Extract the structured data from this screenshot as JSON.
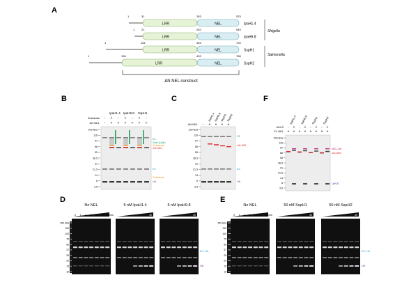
{
  "panels": {
    "A": {
      "letter": "A",
      "constructs": [
        {
          "name": "IpaH1.4",
          "start": "1",
          "lrr_start": "31",
          "nel_start": "283",
          "end": "575"
        },
        {
          "name": "IpaH9.8",
          "start": "1",
          "lrr_start": "21",
          "nel_start": "252",
          "end": "545"
        },
        {
          "name": "SspH1",
          "start": "1",
          "lrr_start": "161",
          "nel_start": "403",
          "end": "700"
        },
        {
          "name": "SspH2",
          "start": "1",
          "lrr_start": "156",
          "nel_start": "493",
          "end": "788"
        }
      ],
      "lrr_label": "LRR",
      "nel_label": "NEL",
      "shigella": "Shigella",
      "salmonella": "Salmonella",
      "bracket_label": "ΔN NEL construct"
    },
    "B": {
      "letter": "B",
      "col_groups": [
        "IpaH1.4",
        "IpaH9.8",
        "SspH1"
      ],
      "row1_label": "Substrate",
      "row2_label": "ΔN NEL",
      "row1_signs": [
        "-",
        "+",
        "-",
        "+",
        "-",
        "+",
        "-"
      ],
      "row2_signs": [
        "-",
        "+",
        "+",
        "+",
        "+",
        "+",
        "+"
      ],
      "markers": [
        "200 kDa",
        "116",
        "97",
        "66",
        "55",
        "36.5",
        "31",
        "21.5",
        "14",
        "6",
        "3.5"
      ],
      "labels": {
        "e1": "E1",
        "subub": "Sub-(Ub)n",
        "substrate": "Substrate",
        "dnnel": "ΔN NEL",
        "e2": "E2",
        "substrate2": "Substrate",
        "ub": "Ub"
      }
    },
    "C": {
      "letter": "C",
      "lanes": [
        "IpaH1.4",
        "IpaH9.8",
        "SspH1",
        "SspH2"
      ],
      "row_label": "ΔN NEL",
      "signs": [
        "-",
        "+",
        "+",
        "+",
        "+"
      ],
      "markers": [
        "200 kDa",
        "116",
        "97",
        "66",
        "55",
        "36.5",
        "31",
        "21.5",
        "14",
        "6",
        "3.5"
      ],
      "labels": {
        "e1": "E1",
        "dnnel": "ΔN NEL",
        "e2": "E2",
        "ub": "Ub"
      }
    },
    "F": {
      "letter": "F",
      "lanes": [
        "IpaH1.4",
        "IpaH9.8",
        "SspH1",
        "SspH2"
      ],
      "row1_label": "UbVS",
      "row2_label": "FL NEL",
      "row1_signs": [
        "-",
        "+",
        "-",
        "+",
        "-",
        "+",
        "-",
        "+"
      ],
      "row2_signs": [
        "+",
        "+",
        "+",
        "+",
        "+",
        "+",
        "+",
        "+"
      ],
      "markers": [
        "200 kDa",
        "116",
        "97",
        "66",
        "55",
        "36.5",
        "31",
        "21.5",
        "14",
        "6",
        "3.5"
      ],
      "labels": {
        "nelub": "NEL-Ub",
        "dnnel": "ΔN NEL",
        "ubvs": "UbVS"
      }
    },
    "D": {
      "letter": "D",
      "titles": [
        "No NEL",
        "5 nM IpaH1.4",
        "5 nM IpaH9.8"
      ],
      "times": [
        "0",
        "1",
        "2",
        "5",
        "10",
        "20",
        "30 min"
      ],
      "wedge_end": "30",
      "markers": [
        "250 kDa",
        "150",
        "100",
        "75",
        "50",
        "37",
        "25",
        "20",
        "15",
        "10"
      ],
      "labels": {
        "e2ub": "E2~Ub",
        "ub": "Ub"
      }
    },
    "E": {
      "letter": "E",
      "titles": [
        "No NEL",
        "50 nM SspH1",
        "50 nM SspH2"
      ],
      "times": [
        "0",
        "1",
        "2",
        "5",
        "10",
        "20",
        "30 min"
      ],
      "wedge_end": "30",
      "markers": [
        "250 kDa",
        "150",
        "100",
        "75",
        "50",
        "37",
        "25",
        "20",
        "15",
        "10"
      ],
      "labels": {
        "e2ub": "E2~Ub",
        "ub": "Ub"
      }
    }
  },
  "colors": {
    "lrr": "#e6f3d6",
    "nel": "#d9eef3",
    "e1": "#1a9c5a",
    "e2": "#2ca0d8",
    "red": "#e3262e",
    "orange": "#f39a1e",
    "purple": "#7b2f8e",
    "magenta": "#c0277f"
  }
}
